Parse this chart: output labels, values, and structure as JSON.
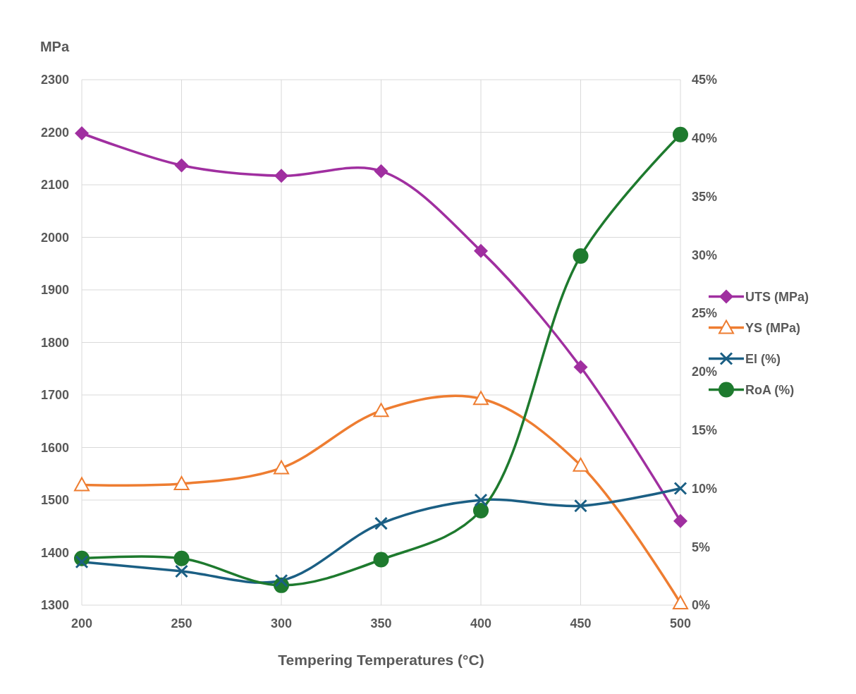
{
  "chart_data": {
    "type": "line",
    "ylabel": "MPa",
    "xlabel": "Tempering Temperatures (°C)",
    "x": [
      200,
      250,
      300,
      350,
      400,
      450,
      500
    ],
    "xlim": [
      200,
      500
    ],
    "xticks": [
      200,
      250,
      300,
      350,
      400,
      450,
      500
    ],
    "ylim": [
      1300,
      2300
    ],
    "yticks": [
      1300,
      1400,
      1500,
      1600,
      1700,
      1800,
      1900,
      2000,
      2100,
      2200,
      2300
    ],
    "y2lim": [
      0,
      45
    ],
    "y2ticks": [
      {
        "value": 0,
        "label": "0%"
      },
      {
        "value": 5,
        "label": "5%"
      },
      {
        "value": 10,
        "label": "10%"
      },
      {
        "value": 15,
        "label": "15%"
      },
      {
        "value": 20,
        "label": "20%"
      },
      {
        "value": 25,
        "label": "25%"
      },
      {
        "value": 30,
        "label": "30%"
      },
      {
        "value": 35,
        "label": "35%"
      },
      {
        "value": 40,
        "label": "40%"
      },
      {
        "value": 45,
        "label": "45%"
      }
    ],
    "grid": true,
    "legend": "right",
    "line_style": "solid",
    "series": [
      {
        "name": "UTS (MPa)",
        "color": "#a02fa0",
        "marker": "diamond",
        "values": [
          2198,
          2137,
          2117,
          2126,
          1974,
          1753,
          1460
        ]
      },
      {
        "name": "YS (MPa)",
        "color": "#ee7d31",
        "marker": "triangle",
        "values": [
          1529,
          1531,
          1561,
          1670,
          1693,
          1566,
          1304
        ]
      },
      {
        "name": "El (%)",
        "color": "#1b5f84",
        "marker": "cross",
        "axis": "y2",
        "values": [
          3.7,
          2.9,
          2.1,
          7.0,
          9.0,
          8.5,
          10.0
        ]
      },
      {
        "name": "RoA (%)",
        "color": "#1e7a2e",
        "marker": "circle",
        "axis": "y2",
        "values": [
          4.0,
          4.0,
          1.7,
          3.9,
          8.1,
          29.9,
          40.3
        ]
      }
    ]
  }
}
